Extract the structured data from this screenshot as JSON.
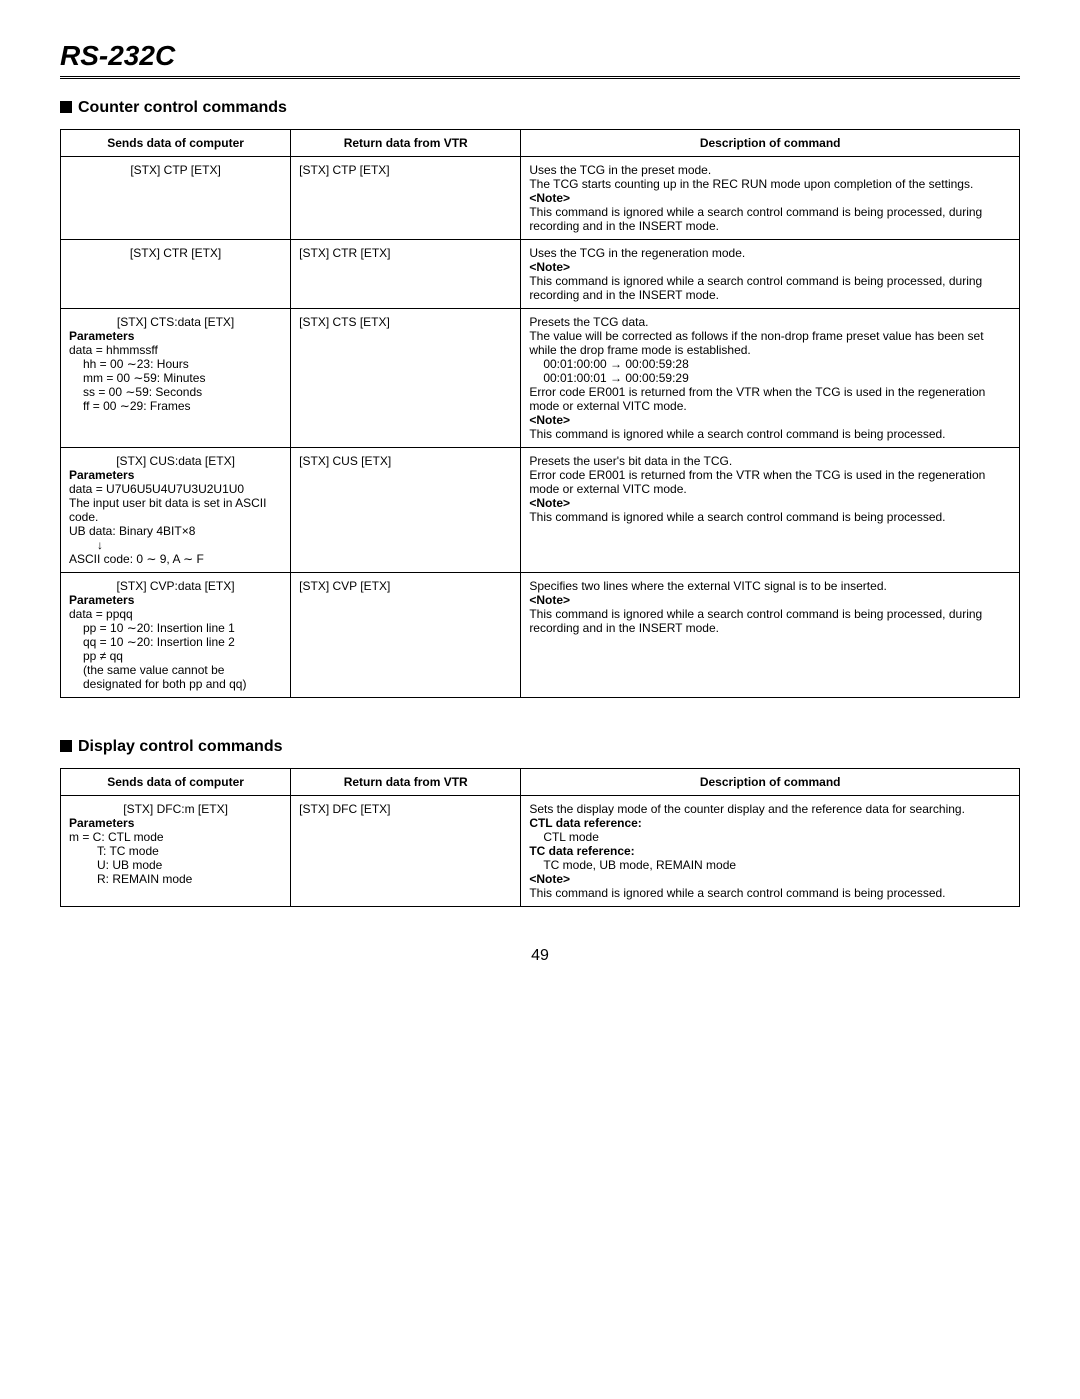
{
  "pageTitle": "RS-232C",
  "pageNumber": "49",
  "sections": [
    {
      "heading": "Counter control commands",
      "columns": [
        "Sends data of computer",
        "Return data from VTR",
        "Description of command"
      ],
      "rows": [
        {
          "send": {
            "line1": "[STX] CTP [ETX]"
          },
          "return": "[STX] CTP [ETX]",
          "desc": [
            {
              "text": "Uses the TCG in the preset mode."
            },
            {
              "text": "The TCG starts counting up in the REC RUN mode upon completion of the settings."
            },
            {
              "text": "<Note>",
              "bold": true
            },
            {
              "text": "This command is ignored while a search control command is being processed, during recording and in the INSERT mode."
            }
          ]
        },
        {
          "send": {
            "line1": "[STX] CTR [ETX]"
          },
          "return": "[STX] CTR [ETX]",
          "desc": [
            {
              "text": "Uses the TCG in the regeneration mode."
            },
            {
              "text": "<Note>",
              "bold": true
            },
            {
              "text": "This command is ignored while a search control command is being processed, during recording and in the INSERT mode."
            }
          ]
        },
        {
          "send": {
            "line1": "[STX] CTS:data [ETX]",
            "params": [
              {
                "text": "Parameters",
                "bold": true
              },
              {
                "text": "data = hhmmssff"
              },
              {
                "text": "hh =  00 ∼23: Hours",
                "indent": 1
              },
              {
                "text": "mm = 00 ∼59: Minutes",
                "indent": 1
              },
              {
                "text": "ss =  00 ∼59: Seconds",
                "indent": 1
              },
              {
                "text": "ff =   00 ∼29: Frames",
                "indent": 1
              }
            ]
          },
          "return": "[STX] CTS [ETX]",
          "desc": [
            {
              "text": "Presets the TCG data."
            },
            {
              "text": "The value will be corrected as follows if the non-drop frame preset value has been set while the drop frame mode is established."
            },
            {
              "text": "00:01:00:00 → 00:00:59:28",
              "indent": 1
            },
            {
              "text": "00:01:00:01 → 00:00:59:29",
              "indent": 1
            },
            {
              "text": "Error code ER001 is returned from the VTR when the TCG is used in the regeneration mode or external VITC mode."
            },
            {
              "text": "<Note>",
              "bold": true
            },
            {
              "text": "This command is ignored while a search control command is being processed."
            }
          ]
        },
        {
          "send": {
            "line1": "[STX] CUS:data [ETX]",
            "params": [
              {
                "text": "Parameters",
                "bold": true
              },
              {
                "text": "data = U7U6U5U4U7U3U2U1U0"
              },
              {
                "text": "The input user bit data is set in ASCII code."
              },
              {
                "text": "UB data:  Binary 4BIT×8"
              },
              {
                "text": "↓",
                "indent": 2
              },
              {
                "text": "ASCII code:  0 ∼ 9, A ∼ F"
              }
            ]
          },
          "return": "[STX] CUS [ETX]",
          "desc": [
            {
              "text": "Presets the user's bit data in the TCG."
            },
            {
              "text": "Error code ER001 is returned from the VTR when the TCG is used in the regeneration mode or external VITC mode."
            },
            {
              "text": "<Note>",
              "bold": true
            },
            {
              "text": "This command is ignored while a search control command is being processed."
            }
          ]
        },
        {
          "send": {
            "line1": "[STX] CVP:data [ETX]",
            "params": [
              {
                "text": "Parameters",
                "bold": true
              },
              {
                "text": "data = ppqq"
              },
              {
                "text": "pp = 10 ∼20: Insertion line 1",
                "indent": 1
              },
              {
                "text": "qq = 10 ∼20: Insertion line 2",
                "indent": 1
              },
              {
                "text": "pp ≠ qq",
                "indent": 1
              },
              {
                "text": "(the same value cannot be designated for both pp and qq)",
                "indent": 1
              }
            ]
          },
          "return": "[STX] CVP [ETX]",
          "desc": [
            {
              "text": "Specifies two lines where the external VITC signal is to be inserted."
            },
            {
              "text": "<Note>",
              "bold": true
            },
            {
              "text": "This command is ignored while a search control command is being processed, during recording and in the INSERT mode."
            }
          ]
        }
      ]
    },
    {
      "heading": "Display control commands",
      "columns": [
        "Sends data of computer",
        "Return data from VTR",
        "Description of command"
      ],
      "rows": [
        {
          "send": {
            "line1": "[STX] DFC:m [ETX]",
            "params": [
              {
                "text": "Parameters",
                "bold": true
              },
              {
                "text": "m = C: CTL mode"
              },
              {
                "text": "T: TC mode",
                "indent": 2
              },
              {
                "text": "U: UB mode",
                "indent": 2
              },
              {
                "text": "R: REMAIN mode",
                "indent": 2
              }
            ]
          },
          "return": "[STX] DFC [ETX]",
          "desc": [
            {
              "text": "Sets the display mode of the counter display and the reference data for searching."
            },
            {
              "text": "CTL data reference:",
              "bold": true
            },
            {
              "text": "CTL mode",
              "indent": 1
            },
            {
              "text": "TC data reference:",
              "bold": true
            },
            {
              "text": "TC mode, UB mode, REMAIN mode",
              "indent": 1
            },
            {
              "text": "<Note>",
              "bold": true
            },
            {
              "text": "This command is ignored while a search control command is being processed."
            }
          ]
        }
      ]
    }
  ]
}
